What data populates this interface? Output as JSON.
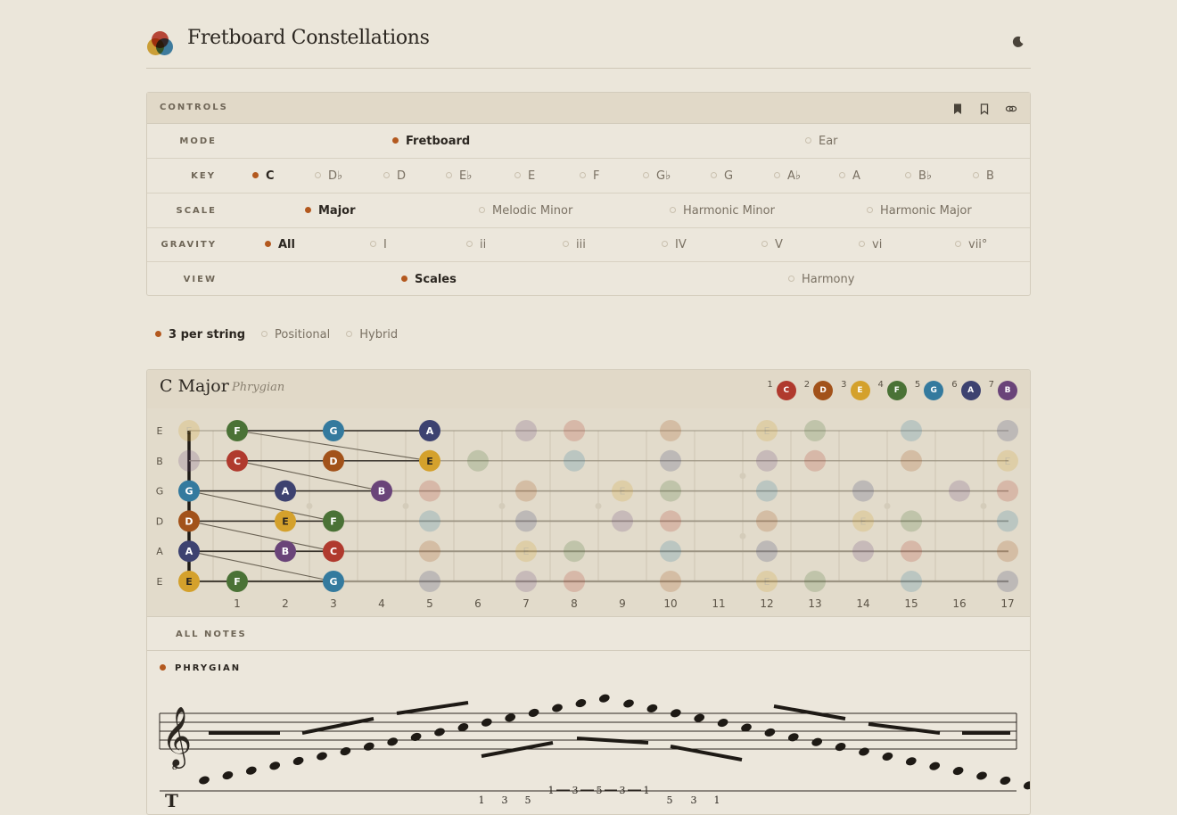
{
  "header": {
    "title": "Fretboard Constellations",
    "theme_icon": "moon-icon"
  },
  "controls": {
    "title": "CONTROLS",
    "icons": [
      "bookmark-filled-icon",
      "bookmark-icon",
      "link-icon"
    ],
    "rows": [
      {
        "label": "MODE",
        "options": [
          "Fretboard",
          "Ear"
        ],
        "selected": 0
      },
      {
        "label": "KEY",
        "options": [
          "C",
          "D♭",
          "D",
          "E♭",
          "E",
          "F",
          "G♭",
          "G",
          "A♭",
          "A",
          "B♭",
          "B"
        ],
        "selected": 0
      },
      {
        "label": "SCALE",
        "options": [
          "Major",
          "Melodic Minor",
          "Harmonic Minor",
          "Harmonic Major"
        ],
        "selected": 0
      },
      {
        "label": "GRAVITY",
        "options": [
          "All",
          "I",
          "ii",
          "iii",
          "IV",
          "V",
          "vi",
          "vii°"
        ],
        "selected": 0
      },
      {
        "label": "VIEW",
        "options": [
          "Scales",
          "Harmony"
        ],
        "selected": 0
      }
    ]
  },
  "fingering": {
    "options": [
      "3 per string",
      "Positional",
      "Hybrid"
    ],
    "selected": 0
  },
  "scale": {
    "title": "C Major",
    "mode": "Phrygian",
    "legend": [
      {
        "degree": "1",
        "note": "C",
        "color": "#b03a2e"
      },
      {
        "degree": "2",
        "note": "D",
        "color": "#a2521a"
      },
      {
        "degree": "3",
        "note": "E",
        "color": "#d4a12c"
      },
      {
        "degree": "4",
        "note": "F",
        "color": "#4a7236"
      },
      {
        "degree": "5",
        "note": "G",
        "color": "#347a9e"
      },
      {
        "degree": "6",
        "note": "A",
        "color": "#3d4270"
      },
      {
        "degree": "7",
        "note": "B",
        "color": "#6a4479"
      }
    ]
  },
  "fretboard": {
    "strings": [
      "E",
      "B",
      "G",
      "D",
      "A",
      "E"
    ],
    "fret_numbers": [
      "1",
      "2",
      "3",
      "4",
      "5",
      "6",
      "7",
      "8",
      "9",
      "10",
      "11",
      "12",
      "13",
      "14",
      "15",
      "16",
      "17"
    ],
    "active_notes": [
      {
        "string": 0,
        "fret": 1,
        "note": "F"
      },
      {
        "string": 0,
        "fret": 3,
        "note": "G"
      },
      {
        "string": 0,
        "fret": 5,
        "note": "A"
      },
      {
        "string": 1,
        "fret": 1,
        "note": "C"
      },
      {
        "string": 1,
        "fret": 3,
        "note": "D"
      },
      {
        "string": 1,
        "fret": 5,
        "note": "E"
      },
      {
        "string": 2,
        "fret": 0,
        "note": "G"
      },
      {
        "string": 2,
        "fret": 2,
        "note": "A"
      },
      {
        "string": 2,
        "fret": 4,
        "note": "B"
      },
      {
        "string": 3,
        "fret": 0,
        "note": "D"
      },
      {
        "string": 3,
        "fret": 2,
        "note": "E"
      },
      {
        "string": 3,
        "fret": 3,
        "note": "F"
      },
      {
        "string": 4,
        "fret": 0,
        "note": "A"
      },
      {
        "string": 4,
        "fret": 2,
        "note": "B"
      },
      {
        "string": 4,
        "fret": 3,
        "note": "C"
      },
      {
        "string": 5,
        "fret": 0,
        "note": "E"
      },
      {
        "string": 5,
        "fret": 1,
        "note": "F"
      },
      {
        "string": 5,
        "fret": 3,
        "note": "G"
      }
    ],
    "path": [
      [
        5,
        0
      ],
      [
        5,
        1
      ],
      [
        5,
        3
      ],
      [
        4,
        0
      ],
      [
        4,
        2
      ],
      [
        4,
        3
      ],
      [
        3,
        0
      ],
      [
        3,
        2
      ],
      [
        3,
        3
      ],
      [
        2,
        0
      ],
      [
        2,
        2
      ],
      [
        2,
        4
      ],
      [
        1,
        1
      ],
      [
        1,
        3
      ],
      [
        1,
        5
      ],
      [
        0,
        1
      ],
      [
        0,
        3
      ],
      [
        0,
        5
      ]
    ]
  },
  "all_notes": {
    "label": "ALL NOTES"
  },
  "phrygian": {
    "label": "PHRYGIAN"
  },
  "tab": {
    "numbers": [
      "1",
      "3",
      "5",
      "3",
      "1",
      "1",
      "3",
      "5",
      "5",
      "3",
      "1"
    ]
  }
}
